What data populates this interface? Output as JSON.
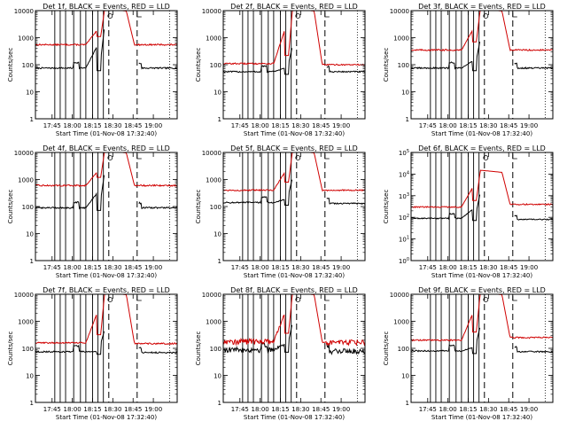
{
  "chart_data": [
    {
      "type": "line",
      "title": "Det  1f, BLACK = Events, RED = LLD",
      "ylabel": "Counts/sec",
      "xlabel": "Start Time (01-Nov-08 17:32:40)",
      "x_ticks": [
        "17:45",
        "18:00",
        "18:15",
        "18:30",
        "18:45",
        "19:00"
      ],
      "y_ticks": [
        "1",
        "10",
        "100",
        "1000",
        "10000"
      ],
      "ylim": [
        1,
        10000
      ],
      "log_y": true,
      "series": [
        {
          "name": "Events",
          "color": "#000000",
          "pre_level": 75,
          "peak": 3000,
          "post_level": 75
        },
        {
          "name": "LLD",
          "color": "#d00000",
          "pre_level": 550,
          "peak": 12000,
          "post_level": 550
        }
      ]
    },
    {
      "type": "line",
      "title": "Det  2f, BLACK = Events, RED = LLD",
      "ylabel": "Counts/sec",
      "xlabel": "Start Time (01-Nov-08 17:32:40)",
      "x_ticks": [
        "17:45",
        "18:00",
        "18:15",
        "18:30",
        "18:45",
        "19:00"
      ],
      "y_ticks": [
        "1",
        "10",
        "100",
        "1000",
        "10000"
      ],
      "ylim": [
        1,
        10000
      ],
      "log_y": true,
      "series": [
        {
          "name": "Events",
          "color": "#000000",
          "pre_level": 55,
          "peak": 500,
          "post_level": 55
        },
        {
          "name": "LLD",
          "color": "#d00000",
          "pre_level": 110,
          "peak": 12000,
          "post_level": 100
        }
      ]
    },
    {
      "type": "line",
      "title": "Det  3f, BLACK = Events, RED = LLD",
      "ylabel": "Counts/sec",
      "xlabel": "Start Time (01-Nov-08 17:32:40)",
      "x_ticks": [
        "17:45",
        "18:00",
        "18:15",
        "18:30",
        "18:45",
        "19:00"
      ],
      "y_ticks": [
        "1",
        "10",
        "100",
        "1000",
        "10000"
      ],
      "ylim": [
        1,
        10000
      ],
      "log_y": true,
      "series": [
        {
          "name": "Events",
          "color": "#000000",
          "pre_level": 75,
          "peak": 900,
          "post_level": 75
        },
        {
          "name": "LLD",
          "color": "#d00000",
          "pre_level": 350,
          "peak": 12000,
          "post_level": 350
        }
      ]
    },
    {
      "type": "line",
      "title": "Det  4f, BLACK = Events, RED = LLD",
      "ylabel": "Counts/sec",
      "xlabel": "Start Time (01-Nov-08 17:32:40)",
      "x_ticks": [
        "17:45",
        "18:00",
        "18:15",
        "18:30",
        "18:45",
        "19:00"
      ],
      "y_ticks": [
        "1",
        "10",
        "100",
        "1000",
        "10000"
      ],
      "ylim": [
        1,
        10000
      ],
      "log_y": true,
      "series": [
        {
          "name": "Events",
          "color": "#000000",
          "pre_level": 90,
          "peak": 2000,
          "post_level": 90
        },
        {
          "name": "LLD",
          "color": "#d00000",
          "pre_level": 600,
          "peak": 12000,
          "post_level": 600
        }
      ]
    },
    {
      "type": "line",
      "title": "Det  5f, BLACK = Events, RED = LLD",
      "ylabel": "Counts/sec",
      "xlabel": "Start Time (01-Nov-08 17:32:40)",
      "x_ticks": [
        "17:45",
        "18:00",
        "18:15",
        "18:30",
        "18:45",
        "19:00"
      ],
      "y_ticks": [
        "1",
        "10",
        "100",
        "1000",
        "10000"
      ],
      "ylim": [
        1,
        10000
      ],
      "log_y": true,
      "series": [
        {
          "name": "Events",
          "color": "#000000",
          "pre_level": 140,
          "peak": 1200,
          "post_level": 130
        },
        {
          "name": "LLD",
          "color": "#d00000",
          "pre_level": 400,
          "peak": 12000,
          "post_level": 400
        }
      ]
    },
    {
      "type": "line",
      "title": "Det  6f, BLACK = Events, RED = LLD",
      "ylabel": "Counts/sec",
      "xlabel": "Start Time (01-Nov-08 17:32:40)",
      "x_ticks": [
        "17:45",
        "18:00",
        "18:15",
        "18:30",
        "18:45",
        "19:00"
      ],
      "y_ticks": [
        "10^0",
        "10^1",
        "10^2",
        "10^3",
        "10^4",
        "10^5"
      ],
      "ylim": [
        1,
        100000
      ],
      "log_y": true,
      "series": [
        {
          "name": "Events",
          "color": "#000000",
          "pre_level": 90,
          "peak": 1500,
          "post_level": 80
        },
        {
          "name": "LLD",
          "color": "#d00000",
          "pre_level": 300,
          "peak": 15000,
          "post_level": 400
        }
      ]
    },
    {
      "type": "line",
      "title": "Det  7f, BLACK = Events, RED = LLD",
      "ylabel": "Counts/sec",
      "xlabel": "Start Time (01-Nov-08 17:32:40)",
      "x_ticks": [
        "17:45",
        "18:00",
        "18:15",
        "18:30",
        "18:45",
        "19:00"
      ],
      "y_ticks": [
        "1",
        "10",
        "100",
        "1000",
        "10000"
      ],
      "ylim": [
        1,
        10000
      ],
      "log_y": true,
      "series": [
        {
          "name": "Events",
          "color": "#000000",
          "pre_level": 75,
          "peak": 500,
          "post_level": 70
        },
        {
          "name": "LLD",
          "color": "#d00000",
          "pre_level": 160,
          "peak": 12000,
          "post_level": 150
        }
      ]
    },
    {
      "type": "line",
      "title": "Det  8f, BLACK = Events, RED = LLD",
      "ylabel": "Counts/sec",
      "xlabel": "Start Time (01-Nov-08 17:32:40)",
      "x_ticks": [
        "17:45",
        "18:00",
        "18:15",
        "18:30",
        "18:45",
        "19:00"
      ],
      "y_ticks": [
        "1",
        "10",
        "100",
        "1000",
        "10000"
      ],
      "ylim": [
        1,
        10000
      ],
      "log_y": true,
      "series": [
        {
          "name": "Events",
          "color": "#000000",
          "pre_level": 90,
          "peak": 900,
          "post_level": 80
        },
        {
          "name": "LLD",
          "color": "#d00000",
          "pre_level": 180,
          "peak": 12000,
          "post_level": 170
        }
      ]
    },
    {
      "type": "line",
      "title": "Det  9f, BLACK = Events, RED = LLD",
      "ylabel": "Counts/sec",
      "xlabel": "Start Time (01-Nov-08 17:32:40)",
      "x_ticks": [
        "17:45",
        "18:00",
        "18:15",
        "18:30",
        "18:45",
        "19:00"
      ],
      "y_ticks": [
        "1",
        "10",
        "100",
        "1000",
        "10000"
      ],
      "ylim": [
        1,
        10000
      ],
      "log_y": true,
      "series": [
        {
          "name": "Events",
          "color": "#000000",
          "pre_level": 80,
          "peak": 700,
          "post_level": 75
        },
        {
          "name": "LLD",
          "color": "#d00000",
          "pre_level": 200,
          "peak": 12000,
          "post_level": 250
        }
      ]
    }
  ]
}
